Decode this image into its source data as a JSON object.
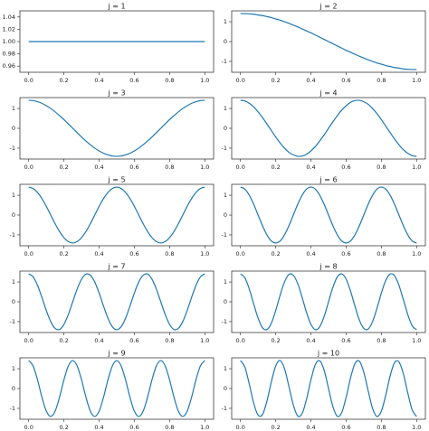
{
  "chart_data": [
    {
      "type": "line",
      "title": "j = 1",
      "x": [
        0,
        1
      ],
      "series": [
        {
          "color": "#1f77b4",
          "values": [
            1,
            1
          ]
        }
      ],
      "xlim": [
        -0.05,
        1.05
      ],
      "ylim": [
        0.95,
        1.05
      ],
      "xticks": [
        {
          "value": 0,
          "label": "0.0"
        },
        0.2,
        0.4,
        0.6,
        0.8,
        {
          "value": 1,
          "label": "1.0"
        }
      ],
      "yticks": [
        0.96,
        0.98,
        {
          "value": 1,
          "label": "1.00"
        },
        1.02,
        1.04
      ]
    },
    {
      "type": "line",
      "title": "j = 2",
      "x": [
        0,
        0.025,
        0.05,
        0.075,
        0.1,
        0.125,
        0.15,
        0.175,
        0.2,
        0.225,
        0.25,
        0.275,
        0.3,
        0.325,
        0.35,
        0.375,
        0.4,
        0.425,
        0.45,
        0.475,
        0.5,
        0.525,
        0.55,
        0.575,
        0.6,
        0.625,
        0.65,
        0.675,
        0.7,
        0.725,
        0.75,
        0.775,
        0.8,
        0.825,
        0.85,
        0.875,
        0.9,
        0.925,
        0.95,
        0.975,
        1
      ],
      "series": [
        {
          "color": "#1f77b4",
          "values": [
            1.41,
            1.41,
            1.4,
            1.38,
            1.34,
            1.31,
            1.26,
            1.21,
            1.14,
            1.08,
            1.0,
            0.92,
            0.83,
            0.74,
            0.64,
            0.54,
            0.44,
            0.33,
            0.22,
            0.11,
            0,
            -0.11,
            -0.22,
            -0.33,
            -0.44,
            -0.54,
            -0.64,
            -0.74,
            -0.83,
            -0.92,
            -1.0,
            -1.08,
            -1.14,
            -1.21,
            -1.26,
            -1.31,
            -1.34,
            -1.38,
            -1.4,
            -1.41,
            -1.41
          ]
        }
      ],
      "xlim": [
        -0.05,
        1.05
      ],
      "ylim": [
        -1.55,
        1.55
      ],
      "xticks": [
        {
          "value": 0,
          "label": "0.0"
        },
        0.2,
        0.4,
        0.6,
        0.8,
        {
          "value": 1,
          "label": "1.0"
        }
      ],
      "yticks": [
        -1,
        0,
        1
      ]
    },
    {
      "type": "line",
      "title": "j = 3",
      "x": [
        0,
        0.025,
        0.05,
        0.075,
        0.1,
        0.125,
        0.15,
        0.175,
        0.2,
        0.225,
        0.25,
        0.275,
        0.3,
        0.325,
        0.35,
        0.375,
        0.4,
        0.425,
        0.45,
        0.475,
        0.5,
        0.525,
        0.55,
        0.575,
        0.6,
        0.625,
        0.65,
        0.675,
        0.7,
        0.725,
        0.75,
        0.775,
        0.8,
        0.825,
        0.85,
        0.875,
        0.9,
        0.925,
        0.95,
        0.975,
        1
      ],
      "series": [
        {
          "color": "#1f77b4",
          "values": [
            1.41,
            1.4,
            1.34,
            1.26,
            1.14,
            1.0,
            0.83,
            0.64,
            0.44,
            0.22,
            0,
            -0.22,
            -0.44,
            -0.64,
            -0.83,
            -1.0,
            -1.14,
            -1.26,
            -1.34,
            -1.4,
            -1.41,
            -1.4,
            -1.34,
            -1.26,
            -1.14,
            -1.0,
            -0.83,
            -0.64,
            -0.44,
            -0.22,
            0,
            0.22,
            0.44,
            0.64,
            0.83,
            1.0,
            1.14,
            1.26,
            1.34,
            1.4,
            1.41
          ]
        }
      ],
      "xlim": [
        -0.05,
        1.05
      ],
      "ylim": [
        -1.55,
        1.55
      ],
      "xticks": [
        {
          "value": 0,
          "label": "0.0"
        },
        0.2,
        0.4,
        0.6,
        0.8,
        {
          "value": 1,
          "label": "1.0"
        }
      ],
      "yticks": [
        -1,
        0,
        1
      ]
    },
    {
      "type": "line",
      "title": "j = 4",
      "x": [
        0,
        0.025,
        0.05,
        0.075,
        0.1,
        0.125,
        0.15,
        0.175,
        0.2,
        0.225,
        0.25,
        0.275,
        0.3,
        0.325,
        0.35,
        0.375,
        0.4,
        0.425,
        0.45,
        0.475,
        0.5,
        0.525,
        0.55,
        0.575,
        0.6,
        0.625,
        0.65,
        0.675,
        0.7,
        0.725,
        0.75,
        0.775,
        0.8,
        0.825,
        0.85,
        0.875,
        0.9,
        0.925,
        0.95,
        0.975,
        1
      ],
      "series": [
        {
          "color": "#1f77b4",
          "values": [
            1.41,
            1.38,
            1.26,
            1.08,
            0.83,
            0.54,
            0.22,
            -0.11,
            -0.44,
            -0.74,
            -1.0,
            -1.21,
            -1.34,
            -1.41,
            -1.4,
            -1.31,
            -1.14,
            -0.92,
            -0.64,
            -0.33,
            0,
            0.33,
            0.64,
            0.92,
            1.14,
            1.31,
            1.4,
            1.41,
            1.34,
            1.21,
            1.0,
            0.74,
            0.44,
            0.11,
            -0.22,
            -0.54,
            -0.83,
            -1.08,
            -1.26,
            -1.38,
            -1.41
          ]
        }
      ],
      "xlim": [
        -0.05,
        1.05
      ],
      "ylim": [
        -1.55,
        1.55
      ],
      "xticks": [
        {
          "value": 0,
          "label": "0.0"
        },
        0.2,
        0.4,
        0.6,
        0.8,
        {
          "value": 1,
          "label": "1.0"
        }
      ],
      "yticks": [
        -1,
        0,
        1
      ]
    },
    {
      "type": "line",
      "title": "j = 5",
      "x": [
        0,
        0.025,
        0.05,
        0.075,
        0.1,
        0.125,
        0.15,
        0.175,
        0.2,
        0.225,
        0.25,
        0.275,
        0.3,
        0.325,
        0.35,
        0.375,
        0.4,
        0.425,
        0.45,
        0.475,
        0.5,
        0.525,
        0.55,
        0.575,
        0.6,
        0.625,
        0.65,
        0.675,
        0.7,
        0.725,
        0.75,
        0.775,
        0.8,
        0.825,
        0.85,
        0.875,
        0.9,
        0.925,
        0.95,
        0.975,
        1
      ],
      "series": [
        {
          "color": "#1f77b4",
          "values": [
            1.41,
            1.34,
            1.14,
            0.83,
            0.44,
            0,
            -0.44,
            -0.83,
            -1.14,
            -1.34,
            -1.41,
            -1.34,
            -1.14,
            -0.83,
            -0.44,
            0,
            0.44,
            0.83,
            1.14,
            1.34,
            1.41,
            1.34,
            1.14,
            0.83,
            0.44,
            0,
            -0.44,
            -0.83,
            -1.14,
            -1.34,
            -1.41,
            -1.34,
            -1.14,
            -0.83,
            -0.44,
            0,
            0.44,
            0.83,
            1.14,
            1.34,
            1.41
          ]
        }
      ],
      "xlim": [
        -0.05,
        1.05
      ],
      "ylim": [
        -1.55,
        1.55
      ],
      "xticks": [
        {
          "value": 0,
          "label": "0.0"
        },
        0.2,
        0.4,
        0.6,
        0.8,
        {
          "value": 1,
          "label": "1.0"
        }
      ],
      "yticks": [
        -1,
        0,
        1
      ]
    },
    {
      "type": "line",
      "title": "j = 6",
      "x": [
        0,
        0.025,
        0.05,
        0.075,
        0.1,
        0.125,
        0.15,
        0.175,
        0.2,
        0.225,
        0.25,
        0.275,
        0.3,
        0.325,
        0.35,
        0.375,
        0.4,
        0.425,
        0.45,
        0.475,
        0.5,
        0.525,
        0.55,
        0.575,
        0.6,
        0.625,
        0.65,
        0.675,
        0.7,
        0.725,
        0.75,
        0.775,
        0.8,
        0.825,
        0.85,
        0.875,
        0.9,
        0.925,
        0.95,
        0.975,
        1
      ],
      "series": [
        {
          "color": "#1f77b4",
          "values": [
            1.41,
            1.31,
            1.0,
            0.54,
            0,
            -0.54,
            -1.0,
            -1.31,
            -1.41,
            -1.31,
            -1.0,
            -0.54,
            0,
            0.54,
            1.0,
            1.31,
            1.41,
            1.31,
            1.0,
            0.54,
            0,
            -0.54,
            -1.0,
            -1.31,
            -1.41,
            -1.31,
            -1.0,
            -0.54,
            0,
            0.54,
            1.0,
            1.31,
            1.41,
            1.31,
            1.0,
            0.54,
            0,
            -0.54,
            -1.0,
            -1.31,
            -1.41
          ]
        }
      ],
      "xlim": [
        -0.05,
        1.05
      ],
      "ylim": [
        -1.55,
        1.55
      ],
      "xticks": [
        {
          "value": 0,
          "label": "0.0"
        },
        0.2,
        0.4,
        0.6,
        0.8,
        {
          "value": 1,
          "label": "1.0"
        }
      ],
      "yticks": [
        -1,
        0,
        1
      ]
    },
    {
      "type": "line",
      "title": "j = 7",
      "x": [
        0,
        0.025,
        0.05,
        0.075,
        0.1,
        0.125,
        0.15,
        0.175,
        0.2,
        0.225,
        0.25,
        0.275,
        0.3,
        0.325,
        0.35,
        0.375,
        0.4,
        0.425,
        0.45,
        0.475,
        0.5,
        0.525,
        0.55,
        0.575,
        0.6,
        0.625,
        0.65,
        0.675,
        0.7,
        0.725,
        0.75,
        0.775,
        0.8,
        0.825,
        0.85,
        0.875,
        0.9,
        0.925,
        0.95,
        0.975,
        1
      ],
      "series": [
        {
          "color": "#1f77b4",
          "values": [
            1.41,
            1.26,
            0.83,
            0.22,
            -0.44,
            -1.0,
            -1.34,
            -1.4,
            -1.14,
            -0.64,
            0,
            0.64,
            1.14,
            1.4,
            1.34,
            1.0,
            0.44,
            -0.22,
            -0.83,
            -1.26,
            -1.41,
            -1.26,
            -0.83,
            -0.22,
            0.44,
            1.0,
            1.34,
            1.4,
            1.14,
            0.64,
            0,
            -0.64,
            -1.14,
            -1.4,
            -1.34,
            -1.0,
            -0.44,
            0.22,
            0.83,
            1.26,
            1.41
          ]
        }
      ],
      "xlim": [
        -0.05,
        1.05
      ],
      "ylim": [
        -1.55,
        1.55
      ],
      "xticks": [
        {
          "value": 0,
          "label": "0.0"
        },
        0.2,
        0.4,
        0.6,
        0.8,
        {
          "value": 1,
          "label": "1.0"
        }
      ],
      "yticks": [
        -1,
        0,
        1
      ]
    },
    {
      "type": "line",
      "title": "j = 8",
      "x": [
        0,
        0.025,
        0.05,
        0.075,
        0.1,
        0.125,
        0.15,
        0.175,
        0.2,
        0.225,
        0.25,
        0.275,
        0.3,
        0.325,
        0.35,
        0.375,
        0.4,
        0.425,
        0.45,
        0.475,
        0.5,
        0.525,
        0.55,
        0.575,
        0.6,
        0.625,
        0.65,
        0.675,
        0.7,
        0.725,
        0.75,
        0.775,
        0.8,
        0.825,
        0.85,
        0.875,
        0.9,
        0.925,
        0.95,
        0.975,
        1
      ],
      "series": [
        {
          "color": "#1f77b4",
          "values": [
            1.41,
            1.21,
            0.64,
            -0.11,
            -0.83,
            -1.31,
            -1.4,
            -1.08,
            -0.44,
            0.33,
            1.0,
            1.38,
            1.34,
            0.92,
            0.22,
            -0.54,
            -1.14,
            -1.41,
            -1.26,
            -0.74,
            0,
            0.74,
            1.26,
            1.41,
            1.14,
            0.54,
            -0.22,
            -0.92,
            -1.34,
            -1.38,
            -1.0,
            -0.33,
            0.44,
            1.08,
            1.4,
            1.31,
            0.83,
            0.11,
            -0.64,
            -1.21,
            -1.41
          ]
        }
      ],
      "xlim": [
        -0.05,
        1.05
      ],
      "ylim": [
        -1.55,
        1.55
      ],
      "xticks": [
        {
          "value": 0,
          "label": "0.0"
        },
        0.2,
        0.4,
        0.6,
        0.8,
        {
          "value": 1,
          "label": "1.0"
        }
      ],
      "yticks": [
        -1,
        0,
        1
      ]
    },
    {
      "type": "line",
      "title": "j = 9",
      "x": [
        0,
        0.025,
        0.05,
        0.075,
        0.1,
        0.125,
        0.15,
        0.175,
        0.2,
        0.225,
        0.25,
        0.275,
        0.3,
        0.325,
        0.35,
        0.375,
        0.4,
        0.425,
        0.45,
        0.475,
        0.5,
        0.525,
        0.55,
        0.575,
        0.6,
        0.625,
        0.65,
        0.675,
        0.7,
        0.725,
        0.75,
        0.775,
        0.8,
        0.825,
        0.85,
        0.875,
        0.9,
        0.925,
        0.95,
        0.975,
        1
      ],
      "series": [
        {
          "color": "#1f77b4",
          "values": [
            1.41,
            1.14,
            0.44,
            -0.44,
            -1.14,
            -1.41,
            -1.14,
            -0.44,
            0.44,
            1.14,
            1.41,
            1.14,
            0.44,
            -0.44,
            -1.14,
            -1.41,
            -1.14,
            -0.44,
            0.44,
            1.14,
            1.41,
            1.14,
            0.44,
            -0.44,
            -1.14,
            -1.41,
            -1.14,
            -0.44,
            0.44,
            1.14,
            1.41,
            1.14,
            0.44,
            -0.44,
            -1.14,
            -1.41,
            -1.14,
            -0.44,
            0.44,
            1.14,
            1.41
          ]
        }
      ],
      "xlim": [
        -0.05,
        1.05
      ],
      "ylim": [
        -1.55,
        1.55
      ],
      "xticks": [
        {
          "value": 0,
          "label": "0.0"
        },
        0.2,
        0.4,
        0.6,
        0.8,
        {
          "value": 1,
          "label": "1.0"
        }
      ],
      "yticks": [
        -1,
        0,
        1
      ]
    },
    {
      "type": "line",
      "title": "j = 10",
      "x": [
        0,
        0.025,
        0.05,
        0.075,
        0.1,
        0.125,
        0.15,
        0.175,
        0.2,
        0.225,
        0.25,
        0.275,
        0.3,
        0.325,
        0.35,
        0.375,
        0.4,
        0.425,
        0.45,
        0.475,
        0.5,
        0.525,
        0.55,
        0.575,
        0.6,
        0.625,
        0.65,
        0.675,
        0.7,
        0.725,
        0.75,
        0.775,
        0.8,
        0.825,
        0.85,
        0.875,
        0.9,
        0.925,
        0.95,
        0.975,
        1
      ],
      "series": [
        {
          "color": "#1f77b4",
          "values": [
            1.41,
            1.08,
            0.22,
            -0.74,
            -1.34,
            -1.31,
            -0.64,
            0.33,
            1.14,
            1.41,
            1.0,
            0.11,
            -0.83,
            -1.38,
            -1.26,
            -0.54,
            0.44,
            1.21,
            1.4,
            0.92,
            0,
            -0.92,
            -1.4,
            -1.21,
            -0.44,
            0.54,
            1.26,
            1.38,
            0.83,
            -0.11,
            -1.0,
            -1.41,
            -1.14,
            -0.33,
            0.64,
            1.31,
            1.34,
            0.74,
            -0.22,
            -1.08,
            -1.41
          ]
        }
      ],
      "xlim": [
        -0.05,
        1.05
      ],
      "ylim": [
        -1.55,
        1.55
      ],
      "xticks": [
        {
          "value": 0,
          "label": "0.0"
        },
        0.2,
        0.4,
        0.6,
        0.8,
        {
          "value": 1,
          "label": "1.0"
        }
      ],
      "yticks": [
        -1,
        0,
        1
      ]
    }
  ]
}
